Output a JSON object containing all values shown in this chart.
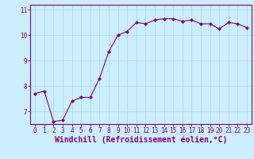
{
  "x": [
    0,
    1,
    2,
    3,
    4,
    5,
    6,
    7,
    8,
    9,
    10,
    11,
    12,
    13,
    14,
    15,
    16,
    17,
    18,
    19,
    20,
    21,
    22,
    23
  ],
  "y": [
    7.7,
    7.8,
    6.6,
    6.65,
    7.4,
    7.55,
    7.55,
    8.3,
    9.35,
    10.0,
    10.15,
    10.5,
    10.45,
    10.6,
    10.65,
    10.65,
    10.55,
    10.6,
    10.45,
    10.45,
    10.25,
    10.5,
    10.45,
    10.3
  ],
  "line_color": "#800080",
  "marker": "D",
  "marker_size": 2.0,
  "bg_color": "#cceeff",
  "grid_color": "#aadddd",
  "xlabel": "Windchill (Refroidissement éolien,°C)",
  "xlim_min": -0.5,
  "xlim_max": 23.5,
  "ylim_min": 6.5,
  "ylim_max": 11.2,
  "yticks": [
    7,
    8,
    9,
    10,
    11
  ],
  "xticks": [
    0,
    1,
    2,
    3,
    4,
    5,
    6,
    7,
    8,
    9,
    10,
    11,
    12,
    13,
    14,
    15,
    16,
    17,
    18,
    19,
    20,
    21,
    22,
    23
  ],
  "tick_color": "#800080",
  "spine_color": "#800080",
  "xlabel_fontsize": 7.0,
  "tick_fontsize": 5.5,
  "linewidth": 0.8
}
